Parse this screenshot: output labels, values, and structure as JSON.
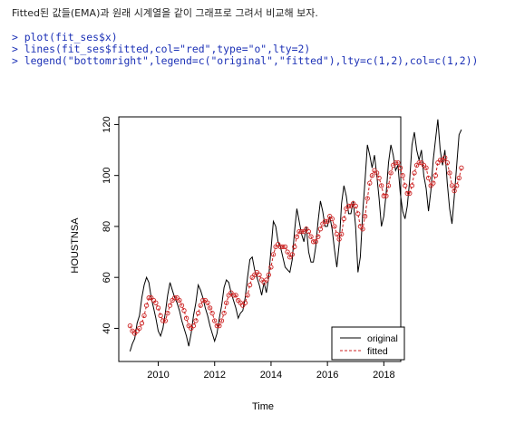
{
  "intro_text": "Fitted된 값들(EMA)과 원래 시계열을 같이 그래프로 그려서 비교해 보자.",
  "code_lines": [
    "> plot(fit_ses$x)",
    "> lines(fit_ses$fitted,col=\"red\",type=\"o\",lty=2)",
    "> legend(\"bottomright\",legend=c(\"original\",\"fitted\"),lty=c(1,2),col=c(1,2))"
  ],
  "chart_data": {
    "type": "line",
    "xlabel": "Time",
    "ylabel": "HOUSTNSA",
    "x_ticks": [
      2010,
      2012,
      2014,
      2016,
      2018
    ],
    "y_ticks": [
      40,
      60,
      80,
      100,
      120
    ],
    "xlim": [
      2008.6,
      2018.6
    ],
    "ylim": [
      27,
      123
    ],
    "x_start": 2009.0,
    "x_step": 0.08333,
    "legend_position": "bottomright",
    "series": [
      {
        "name": "original",
        "color": "#000000",
        "line_style": "solid",
        "values": [
          31,
          34,
          36,
          42,
          45,
          52,
          57,
          60,
          58,
          52,
          48,
          44,
          39,
          37,
          40,
          46,
          53,
          58,
          55,
          52,
          50,
          47,
          43,
          40,
          37,
          33,
          38,
          45,
          50,
          57,
          55,
          52,
          48,
          45,
          41,
          38,
          35,
          38,
          44,
          49,
          56,
          59,
          58,
          54,
          51,
          48,
          44,
          46,
          47,
          52,
          60,
          67,
          68,
          63,
          60,
          57,
          53,
          58,
          54,
          60,
          71,
          82,
          80,
          74,
          72,
          68,
          64,
          63,
          62,
          67,
          78,
          87,
          82,
          77,
          74,
          80,
          70,
          66,
          66,
          72,
          82,
          90,
          86,
          80,
          80,
          84,
          79,
          71,
          64,
          73,
          89,
          96,
          92,
          85,
          85,
          90,
          80,
          62,
          68,
          85,
          98,
          112,
          108,
          103,
          108,
          100,
          91,
          80,
          84,
          93,
          105,
          112,
          108,
          102,
          104,
          93,
          86,
          83,
          88,
          98,
          112,
          117,
          110,
          106,
          110,
          100,
          95,
          86,
          94,
          106,
          114,
          122,
          110,
          104,
          110,
          97,
          87,
          81,
          92,
          104,
          116,
          118
        ]
      },
      {
        "name": "fitted",
        "color": "#cc2222",
        "line_style": "dashed",
        "values": [
          41,
          39,
          38,
          39,
          40,
          42,
          45,
          49,
          52,
          52,
          51,
          50,
          48,
          45,
          43,
          43,
          46,
          49,
          51,
          52,
          52,
          51,
          49,
          47,
          44,
          41,
          40,
          41,
          43,
          46,
          49,
          51,
          51,
          50,
          48,
          46,
          43,
          41,
          41,
          43,
          46,
          50,
          53,
          54,
          53,
          53,
          51,
          50,
          49,
          50,
          53,
          57,
          60,
          61,
          62,
          61,
          59,
          58,
          59,
          61,
          64,
          69,
          72,
          73,
          72,
          72,
          72,
          70,
          68,
          69,
          72,
          76,
          78,
          78,
          78,
          79,
          78,
          76,
          74,
          74,
          76,
          79,
          81,
          82,
          82,
          84,
          83,
          80,
          77,
          75,
          77,
          83,
          87,
          88,
          88,
          89,
          88,
          85,
          80,
          79,
          84,
          91,
          97,
          100,
          102,
          101,
          99,
          96,
          92,
          92,
          96,
          101,
          104,
          105,
          105,
          103,
          100,
          96,
          93,
          93,
          96,
          101,
          104,
          105,
          105,
          104,
          103,
          99,
          96,
          97,
          100,
          105,
          106,
          106,
          107,
          105,
          101,
          96,
          94,
          96,
          99,
          103
        ]
      }
    ]
  }
}
